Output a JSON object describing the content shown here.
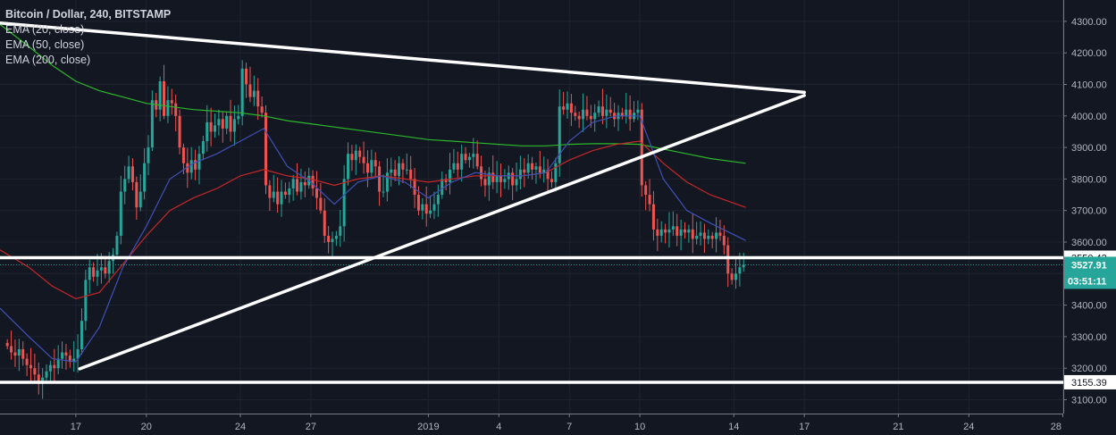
{
  "header": {
    "title": "Bitcoin / Dollar, 240, BITSTAMP",
    "indicators": [
      "EMA (20, close)",
      "EMA (50, close)",
      "EMA (200, close)"
    ]
  },
  "colors": {
    "background": "#131722",
    "grid": "#1f2330",
    "up": "#26a69a",
    "down": "#ef5350",
    "ema20": "#3f51b5",
    "ema50": "#c62828",
    "ema200": "#2bb82b",
    "drawing": "#ffffff",
    "last_price": "#26a69a",
    "axis_text": "#b2b5be"
  },
  "chart_data": {
    "type": "candlestick",
    "symbol": "Bitcoin / Dollar",
    "interval_hours": 4,
    "exchange": "BITSTAMP",
    "first_candle": "2018-12-14T00:00",
    "closes": [
      3270,
      3250,
      3240,
      3260,
      3230,
      3210,
      3200,
      3180,
      3150,
      3170,
      3190,
      3210,
      3200,
      3230,
      3250,
      3240,
      3220,
      3230,
      3260,
      3350,
      3480,
      3520,
      3490,
      3510,
      3520,
      3500,
      3540,
      3560,
      3620,
      3760,
      3800,
      3840,
      3790,
      3710,
      3760,
      3850,
      3900,
      4050,
      4020,
      4110,
      4000,
      4050,
      4040,
      4000,
      3900,
      3850,
      3820,
      3860,
      3830,
      3880,
      3920,
      3980,
      3950,
      3970,
      3990,
      3960,
      4000,
      3950,
      3990,
      4000,
      4150,
      4100,
      4060,
      4080,
      4030,
      4010,
      3780,
      3740,
      3760,
      3720,
      3760,
      3750,
      3770,
      3800,
      3760,
      3790,
      3780,
      3810,
      3770,
      3740,
      3700,
      3620,
      3600,
      3610,
      3620,
      3650,
      3800,
      3880,
      3860,
      3890,
      3870,
      3850,
      3820,
      3860,
      3840,
      3760,
      3760,
      3820,
      3830,
      3810,
      3850,
      3830,
      3830,
      3800,
      3750,
      3700,
      3720,
      3690,
      3700,
      3720,
      3750,
      3800,
      3790,
      3830,
      3850,
      3830,
      3880,
      3860,
      3870,
      3880,
      3840,
      3800,
      3780,
      3820,
      3790,
      3810,
      3790,
      3800,
      3820,
      3780,
      3800,
      3830,
      3820,
      3850,
      3830,
      3840,
      3820,
      3830,
      3800,
      3790,
      3850,
      4030,
      4020,
      4040,
      4010,
      4000,
      3990,
      4020,
      4000,
      3990,
      4010,
      4030,
      4000,
      4020,
      4010,
      3990,
      4010,
      4000,
      4020,
      3990,
      4010,
      4020,
      3780,
      3750,
      3720,
      3640,
      3620,
      3640,
      3630,
      3640,
      3650,
      3620,
      3640,
      3630,
      3640,
      3610,
      3620,
      3630,
      3610,
      3620,
      3610,
      3630,
      3620,
      3590,
      3500,
      3480,
      3500,
      3520,
      3527.91
    ],
    "ema_daily": {
      "dates_start": "2018-12-14",
      "ema20": [
        3390,
        3300,
        3230,
        3220,
        3330,
        3520,
        3650,
        3800,
        3850,
        3880,
        3920,
        3960,
        3840,
        3790,
        3720,
        3790,
        3810,
        3790,
        3740,
        3790,
        3820,
        3810,
        3810,
        3820,
        3920,
        3980,
        4000,
        4000,
        3800,
        3700,
        3660,
        3605
      ],
      "ema50": [
        3575,
        3520,
        3460,
        3420,
        3440,
        3530,
        3620,
        3700,
        3740,
        3770,
        3810,
        3830,
        3810,
        3800,
        3780,
        3800,
        3810,
        3800,
        3790,
        3800,
        3810,
        3810,
        3810,
        3820,
        3860,
        3890,
        3910,
        3920,
        3850,
        3790,
        3750,
        3710
      ],
      "ema200": [
        4290,
        4220,
        4160,
        4110,
        4080,
        4060,
        4040,
        4030,
        4020,
        4015,
        4010,
        4000,
        3985,
        3975,
        3965,
        3955,
        3945,
        3935,
        3925,
        3920,
        3915,
        3910,
        3905,
        3905,
        3910,
        3912,
        3912,
        3910,
        3895,
        3880,
        3865,
        3850
      ]
    },
    "drawings": {
      "trendlines": [
        {
          "from": [
            "2018-12-13T18:00",
            4295
          ],
          "to": [
            "2019-01-17T00:00",
            4075
          ]
        },
        {
          "from": [
            "2018-12-17T04:00",
            3198
          ],
          "to": [
            "2019-01-17T00:00",
            4065
          ]
        }
      ],
      "horizontal_lines": [
        3550.42,
        3155.39
      ]
    },
    "y_ticks": [
      3100,
      3200,
      3300,
      3400,
      3500,
      3600,
      3700,
      3800,
      3900,
      4000,
      4100,
      4200,
      4300
    ],
    "ylim": [
      3050,
      4340
    ],
    "x_ticks": [
      {
        "label": "17",
        "date": "2018-12-17"
      },
      {
        "label": "20",
        "date": "2018-12-20"
      },
      {
        "label": "24",
        "date": "2018-12-24"
      },
      {
        "label": "27",
        "date": "2018-12-27"
      },
      {
        "label": "2019",
        "date": "2019-01-01"
      },
      {
        "label": "4",
        "date": "2019-01-04"
      },
      {
        "label": "7",
        "date": "2019-01-07"
      },
      {
        "label": "10",
        "date": "2019-01-10"
      },
      {
        "label": "14",
        "date": "2019-01-14"
      },
      {
        "label": "17",
        "date": "2019-01-17"
      },
      {
        "label": "21",
        "date": "2019-01-21"
      },
      {
        "label": "24",
        "date": "2019-01-24"
      },
      {
        "label": "28",
        "date": "2019-01-28"
      }
    ],
    "last_price": "3527.91",
    "countdown": "03:51:11",
    "line_labels": [
      "3550.42",
      "3155.39"
    ]
  }
}
